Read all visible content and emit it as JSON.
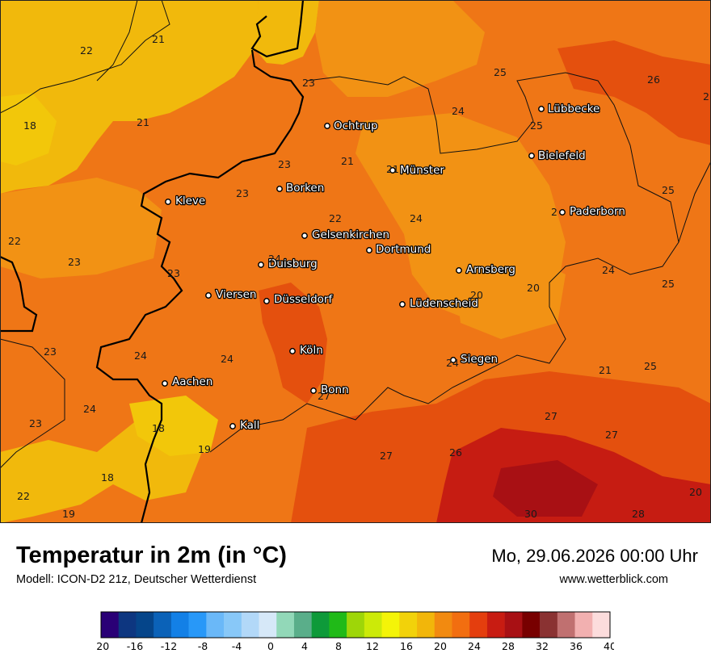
{
  "header": {
    "title": "Temperatur in 2m (in °C)",
    "model": "Modell: ICON-D2 21z, Deutscher Wetterdienst",
    "datetime": "Mo, 29.06.2026 00:00 Uhr",
    "website": "www.wetterblick.com"
  },
  "cities": [
    {
      "name": "Ochtrup"
    },
    {
      "name": "Lübbecke"
    },
    {
      "name": "Bielefeld"
    },
    {
      "name": "Münster"
    },
    {
      "name": "Borken"
    },
    {
      "name": "Kleve"
    },
    {
      "name": "Paderborn"
    },
    {
      "name": "Gelsenkirchen"
    },
    {
      "name": "Dortmund"
    },
    {
      "name": "Duisburg"
    },
    {
      "name": "Arnsberg"
    },
    {
      "name": "Viersen"
    },
    {
      "name": "Düsseldorf"
    },
    {
      "name": "Lüdenscheid"
    },
    {
      "name": "Köln"
    },
    {
      "name": "Siegen"
    },
    {
      "name": "Aachen"
    },
    {
      "name": "Bonn"
    },
    {
      "name": "Kall"
    }
  ],
  "values": [
    "21",
    "22",
    "18",
    "21",
    "23",
    "25",
    "26",
    "2",
    "24",
    "25",
    "21",
    "23",
    "23",
    "2",
    "22",
    "24",
    "25",
    "22",
    "23",
    "23",
    "24",
    "24",
    "20",
    "20",
    "25",
    "24",
    "23",
    "24",
    "24",
    "21",
    "25",
    "24",
    "23",
    "18",
    "27",
    "27",
    "19",
    "26",
    "27",
    "18",
    "22",
    "19",
    "30",
    "28",
    "20",
    "21",
    "27"
  ],
  "legend": {
    "unit": "°C",
    "ticks": [
      "-20",
      "-16",
      "-12",
      "-8",
      "-4",
      "0",
      "4",
      "8",
      "12",
      "16",
      "20",
      "24",
      "28",
      "32",
      "36",
      "40"
    ],
    "colors": [
      "#2a0076",
      "#0d3680",
      "#05458a",
      "#0b62b8",
      "#1380e6",
      "#2898f8",
      "#6ab8f8",
      "#88c8f8",
      "#b2d8f8",
      "#d6e8f8",
      "#92d8b8",
      "#5aae8a",
      "#0e9a3a",
      "#20ba18",
      "#9ed608",
      "#ccea08",
      "#f4f408",
      "#f2d20a",
      "#f2b60a",
      "#f28a10",
      "#f26e10",
      "#e43e0e",
      "#c81c12",
      "#a81014",
      "#780000",
      "#8a3232",
      "#c07070",
      "#f2b0b0",
      "#fcdcdc"
    ]
  }
}
